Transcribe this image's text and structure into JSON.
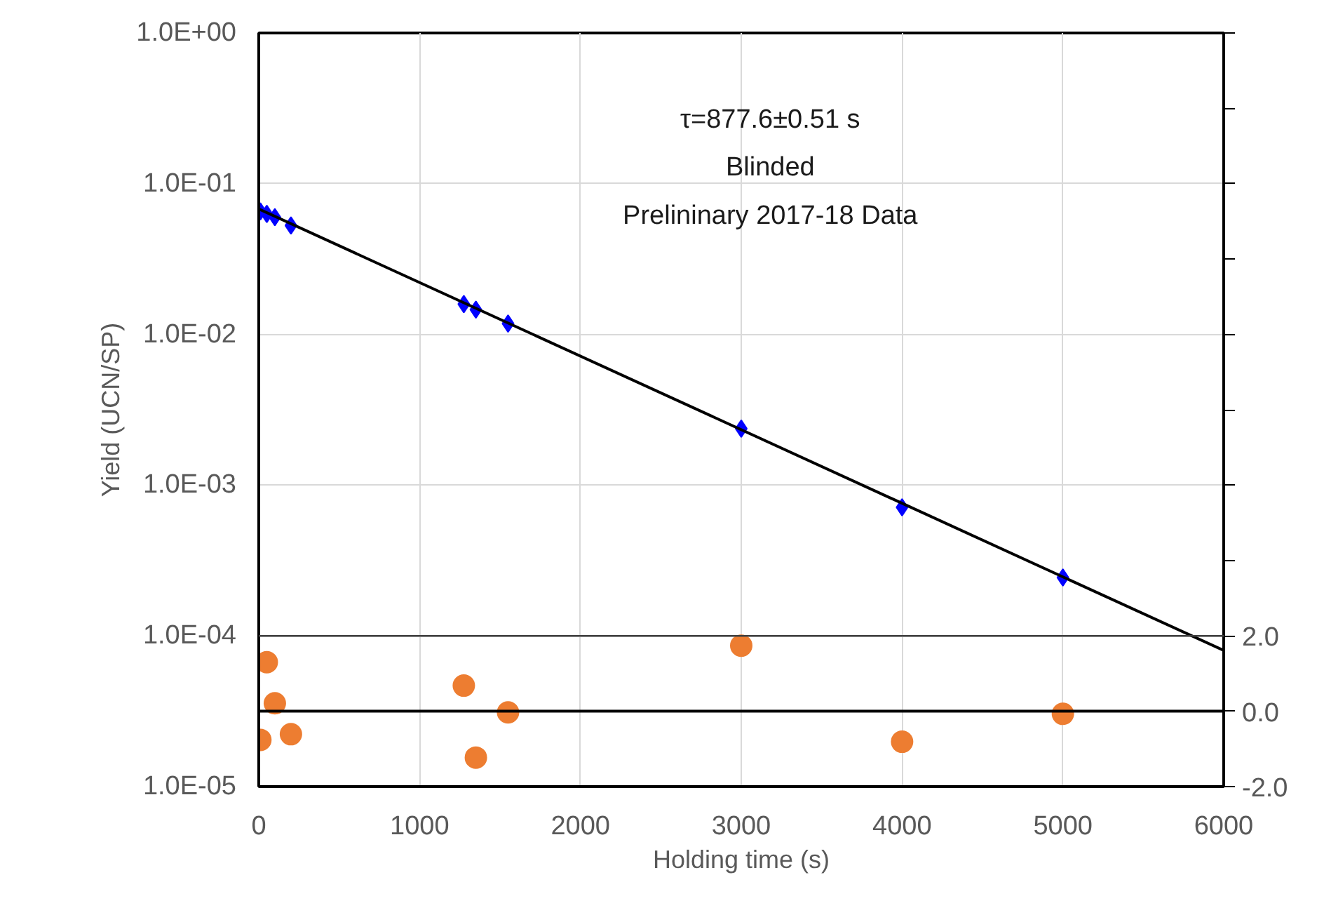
{
  "chart_data": {
    "type": "scatter",
    "xlabel": "Holding time (s)",
    "ylabel": "Yield (UCN/SP)",
    "annotations": [
      "τ=877.6±0.51 s",
      "Blinded",
      "Prelininary 2017-18 Data"
    ],
    "x": [
      10,
      50,
      100,
      200,
      1275,
      1350,
      1550,
      3000,
      4000,
      5000
    ],
    "series": [
      {
        "type": "scatter",
        "color": "#0000ff",
        "marker": "diamond",
        "values": [
          0.0655,
          0.063,
          0.06,
          0.0528,
          0.0159,
          0.0146,
          0.0118,
          0.00237,
          0.000713,
          0.000244
        ]
      },
      {
        "type": "line",
        "color": "#000000",
        "marker": "none",
        "line_style": "solid",
        "x": [
          0,
          6000
        ],
        "values": [
          0.068,
          8e-05
        ]
      },
      {
        "type": "scatter",
        "color": "#ed7d31",
        "marker": "circle",
        "axis": "y2",
        "values": [
          -0.76,
          1.3,
          0.21,
          -0.61,
          0.68,
          -1.23,
          -0.03,
          1.74,
          -0.81,
          -0.07
        ]
      }
    ],
    "log": "y",
    "xlim": [
      0,
      6000
    ],
    "xticks": [
      0,
      1000,
      2000,
      3000,
      4000,
      5000,
      6000
    ],
    "ylim": [
      1e-05,
      1
    ],
    "yticks": [
      {
        "value": 1e-05,
        "label": "1.0E-05"
      },
      {
        "value": 0.0001,
        "label": "1.0E-04"
      },
      {
        "value": 0.001,
        "label": "1.0E-03"
      },
      {
        "value": 0.01,
        "label": "1.0E-02"
      },
      {
        "value": 0.1,
        "label": "1.0E-01"
      },
      {
        "value": 1,
        "label": "1.0E+00"
      }
    ],
    "y2lim": [
      -2,
      18
    ],
    "y2ticks": [
      {
        "value": -2,
        "label": "-2.0"
      },
      {
        "value": 0,
        "label": "0.0"
      },
      {
        "value": 2,
        "label": "2.0"
      },
      {
        "value": 4,
        "label": null
      },
      {
        "value": 6,
        "label": null
      },
      {
        "value": 8,
        "label": null
      },
      {
        "value": 10,
        "label": null
      },
      {
        "value": 12,
        "label": null
      },
      {
        "value": 14,
        "label": null
      },
      {
        "value": 16,
        "label": null
      },
      {
        "value": 18,
        "label": null
      }
    ],
    "ref_lines": [
      {
        "axis": "y2",
        "value": 0,
        "color": "#000000",
        "line_style": "solid"
      },
      {
        "axis": "y2",
        "value": 2,
        "color": "#404040",
        "line_style": "solid"
      }
    ],
    "grid": true
  }
}
